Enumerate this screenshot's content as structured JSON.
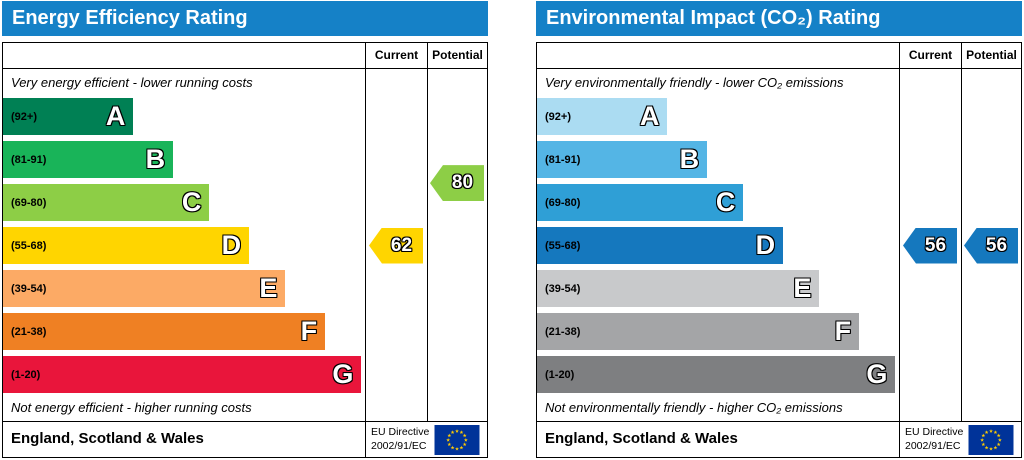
{
  "colors": {
    "header_bg": "#1581c7",
    "header_text": "#ffffff",
    "eu_flag_bg": "#003399",
    "eu_flag_stars": "#ffcc00",
    "border": "#000000"
  },
  "chart_data": [
    {
      "type": "bar",
      "title": "Energy Efficiency Rating",
      "columns": {
        "current_label": "Current",
        "potential_label": "Potential"
      },
      "top_note": "Very energy efficient - lower running costs",
      "bottom_note": "Not energy efficient - higher running costs",
      "bands": [
        {
          "letter": "A",
          "range": "(92+)",
          "color": "#008054",
          "width_pct": 36
        },
        {
          "letter": "B",
          "range": "(81-91)",
          "color": "#19b459",
          "width_pct": 47
        },
        {
          "letter": "C",
          "range": "(69-80)",
          "color": "#8dce46",
          "width_pct": 57
        },
        {
          "letter": "D",
          "range": "(55-68)",
          "color": "#ffd500",
          "width_pct": 68
        },
        {
          "letter": "E",
          "range": "(39-54)",
          "color": "#fcaa65",
          "width_pct": 78
        },
        {
          "letter": "F",
          "range": "(21-38)",
          "color": "#ef8023",
          "width_pct": 89
        },
        {
          "letter": "G",
          "range": "(1-20)",
          "color": "#e9153b",
          "width_pct": 99
        }
      ],
      "current": {
        "value": "62",
        "band": "D",
        "color": "#ffd500",
        "row": 3
      },
      "potential": {
        "value": "80",
        "band": "C",
        "color": "#8dce46",
        "row": 1.55
      },
      "footer": {
        "region": "England, Scotland & Wales",
        "directive_line1": "EU Directive",
        "directive_line2": "2002/91/EC"
      }
    },
    {
      "type": "bar",
      "title": "Environmental Impact (CO₂) Rating",
      "columns": {
        "current_label": "Current",
        "potential_label": "Potential"
      },
      "top_note": "Very environmentally friendly - lower CO₂ emissions",
      "bottom_note": "Not environmentally friendly - higher CO₂ emissions",
      "bands": [
        {
          "letter": "A",
          "range": "(92+)",
          "color": "#abdcf2",
          "width_pct": 36
        },
        {
          "letter": "B",
          "range": "(81-91)",
          "color": "#54b5e5",
          "width_pct": 47
        },
        {
          "letter": "C",
          "range": "(69-80)",
          "color": "#2f9fd6",
          "width_pct": 57
        },
        {
          "letter": "D",
          "range": "(55-68)",
          "color": "#1578be",
          "width_pct": 68
        },
        {
          "letter": "E",
          "range": "(39-54)",
          "color": "#c8c9cb",
          "width_pct": 78
        },
        {
          "letter": "F",
          "range": "(21-38)",
          "color": "#a4a5a7",
          "width_pct": 89
        },
        {
          "letter": "G",
          "range": "(1-20)",
          "color": "#7e7f81",
          "width_pct": 99
        }
      ],
      "current": {
        "value": "56",
        "band": "D",
        "color": "#1578be",
        "row": 3
      },
      "potential": {
        "value": "56",
        "band": "D",
        "color": "#1578be",
        "row": 3
      },
      "footer": {
        "region": "England, Scotland & Wales",
        "directive_line1": "EU Directive",
        "directive_line2": "2002/91/EC"
      }
    }
  ]
}
